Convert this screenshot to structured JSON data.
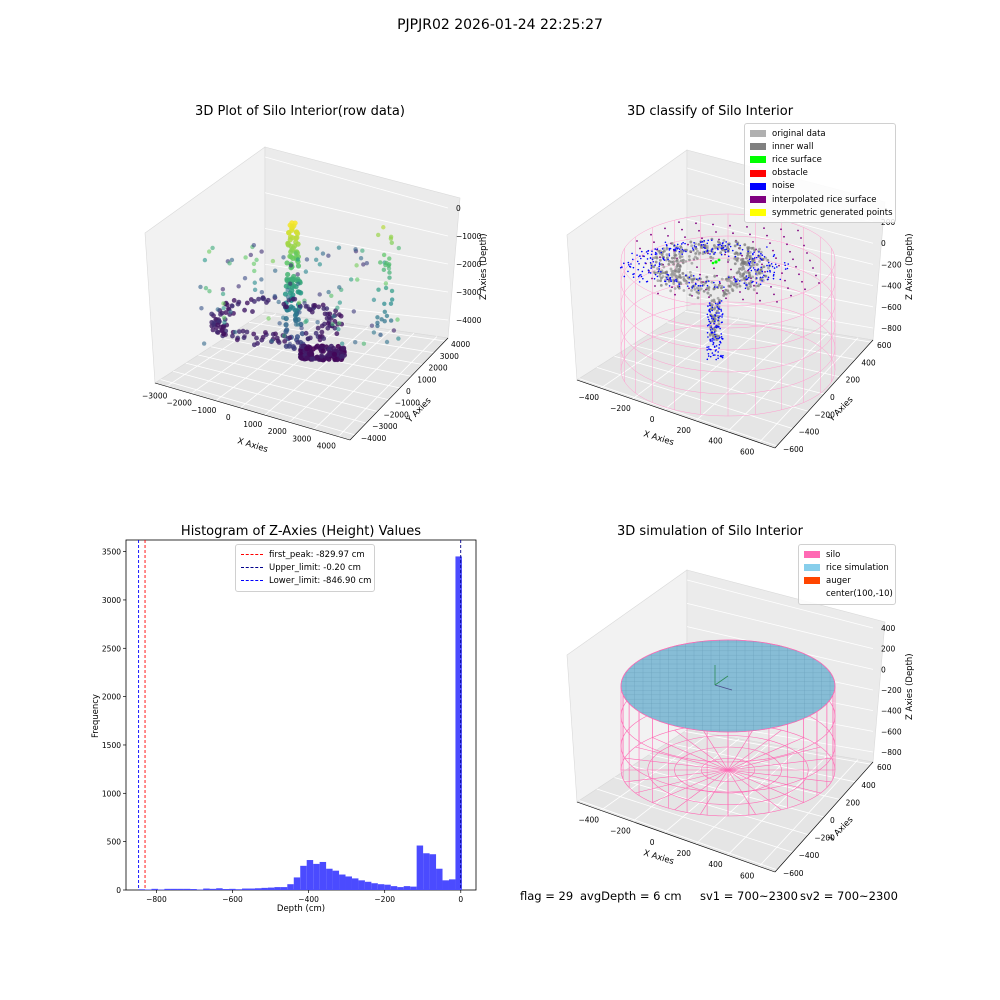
{
  "figure": {
    "suptitle": "PJPJR02 2026-01-24 22:25:27",
    "footer": {
      "flag": "flag = 29",
      "avg_depth": "avgDepth = 6 cm",
      "sv1": "sv1 = 700~2300",
      "sv2": "sv2 = 700~2300"
    }
  },
  "chart_data": [
    {
      "type": "scatter",
      "title": "3D Plot of Silo Interior(row data)",
      "xlabel": "X Axies",
      "ylabel": "Y Axies",
      "zlabel": "Z Axies (Depth)",
      "x_ticks": [
        "−3000",
        "−2000",
        "−1000",
        "0",
        "1000",
        "2000",
        "3000",
        "4000"
      ],
      "y_ticks": [
        "−4000",
        "−3000",
        "−2000",
        "−1000",
        "0",
        "1000",
        "2000",
        "3000",
        "4000"
      ],
      "z_ticks": [
        "0",
        "−1000",
        "−2000",
        "−3000",
        "−4000"
      ],
      "xlim": [
        -3500,
        4500
      ],
      "ylim": [
        -4500,
        4500
      ],
      "zlim": [
        -4500,
        0
      ],
      "colormap": "viridis",
      "clusters": [
        {
          "x": 0,
          "y": 0,
          "z": [
            -600,
            -4000
          ],
          "desc": "central column"
        },
        {
          "x": -1500,
          "y": 1000,
          "z": [
            -3800,
            -4200
          ],
          "desc": "inner wall ring"
        },
        {
          "x": 500,
          "y": -1000,
          "z": [
            -4300,
            -4500
          ],
          "desc": "bottom"
        }
      ]
    },
    {
      "type": "scatter",
      "title": "3D classify of Silo Interior",
      "xlabel": "X Axies",
      "ylabel": "Y Axies",
      "zlabel": "Z Axies (Depth)",
      "x_ticks": [
        "−400",
        "−200",
        "0",
        "200",
        "400",
        "600"
      ],
      "y_ticks": [
        "−600",
        "−400",
        "−200",
        "0",
        "200",
        "400",
        "600"
      ],
      "z_ticks": [
        "200",
        "0",
        "−200",
        "−400",
        "−600",
        "−800"
      ],
      "xlim": [
        -500,
        700
      ],
      "ylim": [
        -700,
        700
      ],
      "zlim": [
        -900,
        300
      ],
      "legend": [
        {
          "label": "original data",
          "color": "#b0b0b0"
        },
        {
          "label": "inner wall",
          "color": "#808080"
        },
        {
          "label": "rice surface",
          "color": "#00ff00"
        },
        {
          "label": "obstacle",
          "color": "#ff0000"
        },
        {
          "label": "noise",
          "color": "#0000ff"
        },
        {
          "label": "interpolated rice surface",
          "color": "#800080"
        },
        {
          "label": "symmetric generated points",
          "color": "#ffff00"
        }
      ]
    },
    {
      "type": "bar",
      "title": "Histogram of Z-Axies (Height) Values",
      "xlabel": "Depth (cm)",
      "ylabel": "Frequency",
      "xlim": [
        -880,
        40
      ],
      "ylim": [
        0,
        3620
      ],
      "x_ticks": [
        -800,
        -600,
        -400,
        -200,
        0
      ],
      "x_tick_labels": [
        "−800",
        "−600",
        "−400",
        "−200",
        "0"
      ],
      "y_ticks": [
        0,
        500,
        1000,
        1500,
        2000,
        2500,
        3000,
        3500
      ],
      "y_tick_labels": [
        "0",
        "500",
        "1000",
        "1500",
        "2000",
        "2500",
        "3000",
        "3500"
      ],
      "bin_width": 17,
      "bins": [
        {
          "x": -847,
          "v": 8
        },
        {
          "x": -830,
          "v": 5
        },
        {
          "x": -813,
          "v": 12
        },
        {
          "x": -796,
          "v": 5
        },
        {
          "x": -779,
          "v": 12
        },
        {
          "x": -762,
          "v": 12
        },
        {
          "x": -745,
          "v": 12
        },
        {
          "x": -728,
          "v": 12
        },
        {
          "x": -711,
          "v": 10
        },
        {
          "x": -694,
          "v": 5
        },
        {
          "x": -677,
          "v": 15
        },
        {
          "x": -660,
          "v": 12
        },
        {
          "x": -643,
          "v": 18
        },
        {
          "x": -626,
          "v": 10
        },
        {
          "x": -609,
          "v": 12
        },
        {
          "x": -592,
          "v": 8
        },
        {
          "x": -575,
          "v": 15
        },
        {
          "x": -558,
          "v": 15
        },
        {
          "x": -541,
          "v": 18
        },
        {
          "x": -524,
          "v": 22
        },
        {
          "x": -507,
          "v": 25
        },
        {
          "x": -490,
          "v": 30
        },
        {
          "x": -473,
          "v": 30
        },
        {
          "x": -456,
          "v": 60
        },
        {
          "x": -439,
          "v": 130
        },
        {
          "x": -422,
          "v": 250
        },
        {
          "x": -405,
          "v": 310
        },
        {
          "x": -388,
          "v": 270
        },
        {
          "x": -371,
          "v": 290
        },
        {
          "x": -354,
          "v": 220
        },
        {
          "x": -337,
          "v": 200
        },
        {
          "x": -320,
          "v": 160
        },
        {
          "x": -303,
          "v": 140
        },
        {
          "x": -286,
          "v": 120
        },
        {
          "x": -269,
          "v": 100
        },
        {
          "x": -252,
          "v": 85
        },
        {
          "x": -235,
          "v": 70
        },
        {
          "x": -218,
          "v": 60
        },
        {
          "x": -201,
          "v": 55
        },
        {
          "x": -184,
          "v": 40
        },
        {
          "x": -167,
          "v": 30
        },
        {
          "x": -150,
          "v": 40
        },
        {
          "x": -133,
          "v": 35
        },
        {
          "x": -116,
          "v": 460
        },
        {
          "x": -99,
          "v": 380
        },
        {
          "x": -82,
          "v": 370
        },
        {
          "x": -65,
          "v": 220
        },
        {
          "x": -48,
          "v": 100
        },
        {
          "x": -31,
          "v": 110
        },
        {
          "x": -14,
          "v": 3450
        }
      ],
      "vlines": [
        {
          "label": "first_peak: -829.97 cm",
          "x": -829.97,
          "color": "#ff0000"
        },
        {
          "label": "Upper_limit: -0.20 cm",
          "x": -0.2,
          "color": "#00008b"
        },
        {
          "label": "Lower_limit: -846.90 cm",
          "x": -846.9,
          "color": "#0000ff"
        }
      ],
      "bar_color": "#4b4bff"
    },
    {
      "type": "scatter",
      "title": "3D simulation of Silo Interior",
      "xlabel": "X Axies",
      "ylabel": "Y Axies",
      "zlabel": "Z Axies (Depth)",
      "x_ticks": [
        "−400",
        "−200",
        "0",
        "200",
        "400",
        "600"
      ],
      "y_ticks": [
        "−600",
        "−400",
        "−200",
        "0",
        "200",
        "400",
        "600"
      ],
      "z_ticks": [
        "400",
        "200",
        "0",
        "−200",
        "−400",
        "−600",
        "−800"
      ],
      "xlim": [
        -500,
        700
      ],
      "ylim": [
        -700,
        700
      ],
      "zlim": [
        -900,
        500
      ],
      "legend": [
        {
          "label": "silo",
          "color": "#ff69b4"
        },
        {
          "label": "rice simulation",
          "color": "#87ceeb"
        },
        {
          "label": "auger",
          "color": "#ff4500"
        },
        {
          "label": "center(100,-10)",
          "color": null
        }
      ]
    }
  ]
}
